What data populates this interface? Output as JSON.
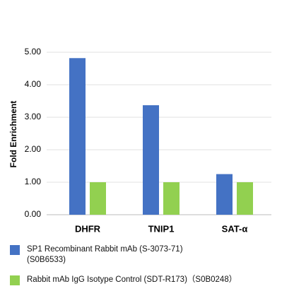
{
  "chart_data": {
    "type": "bar",
    "y_label": "Fold Enrichment",
    "categories": [
      "DHFR",
      "TNIP1",
      "SAT-α"
    ],
    "series": [
      {
        "name": "SP1 Recombinant Rabbit mAb (S-3073-71)\n(S0B6533)",
        "color": "#4472c4",
        "values": [
          4.82,
          3.37,
          1.25
        ]
      },
      {
        "name": "Rabbit mAb IgG Isotype Control (SDT-R173)（S0B0248）",
        "color": "#92d050",
        "values": [
          1.0,
          1.0,
          1.0
        ]
      }
    ],
    "ylim": [
      0,
      5
    ],
    "yticks": [
      {
        "value": 0,
        "label": "0.00"
      },
      {
        "value": 1,
        "label": "1.00"
      },
      {
        "value": 2,
        "label": "2.00"
      },
      {
        "value": 3,
        "label": "3.00"
      },
      {
        "value": 4,
        "label": "4.00"
      },
      {
        "value": 5,
        "label": "5.00"
      }
    ],
    "grid": true
  }
}
